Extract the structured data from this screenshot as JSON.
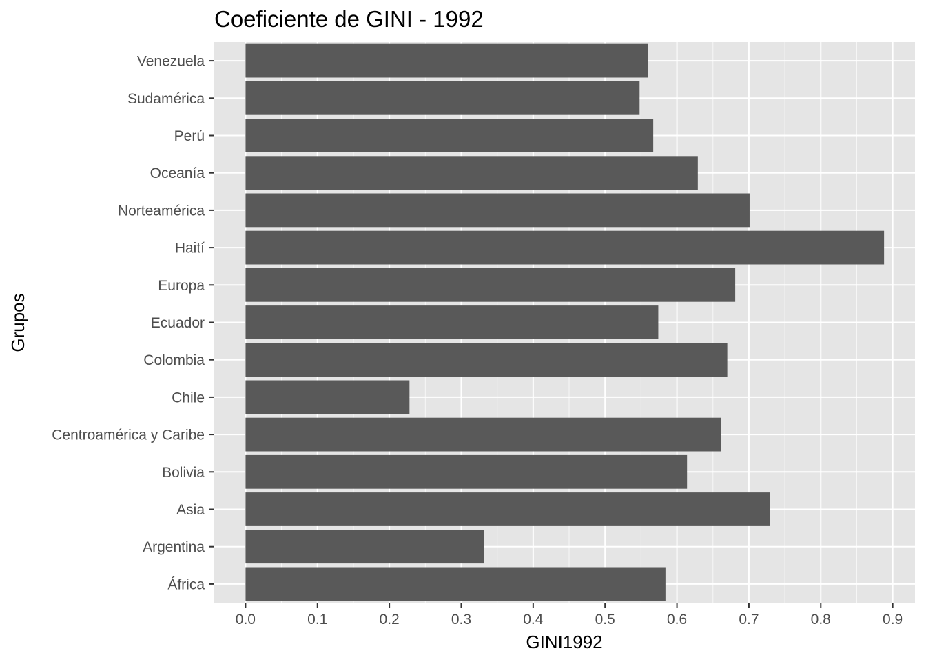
{
  "chart_data": {
    "type": "bar",
    "orientation": "horizontal",
    "title": "Coeficiente de GINI - 1992",
    "xlabel": "GINI1992",
    "ylabel": "Grupos",
    "categories": [
      "Venezuela",
      "Sudamérica",
      "Perú",
      "Oceanía",
      "Norteamérica",
      "Haití",
      "Europa",
      "Ecuador",
      "Colombia",
      "Chile",
      "Centroamérica y Caribe",
      "Bolivia",
      "Asia",
      "Argentina",
      "África"
    ],
    "values": [
      0.56,
      0.548,
      0.567,
      0.629,
      0.701,
      0.888,
      0.681,
      0.574,
      0.67,
      0.228,
      0.661,
      0.614,
      0.729,
      0.332,
      0.584
    ],
    "x_ticks": [
      "0.0",
      "0.1",
      "0.2",
      "0.3",
      "0.4",
      "0.5",
      "0.6",
      "0.7",
      "0.8",
      "0.9"
    ],
    "xlim": [
      -0.0435,
      0.931
    ],
    "grid": true,
    "colors": {
      "panel": "#e5e5e5",
      "grid": "#ffffff",
      "bar": "#595959",
      "tick_text": "#4d4d4d",
      "tick_mark": "#333333"
    }
  }
}
